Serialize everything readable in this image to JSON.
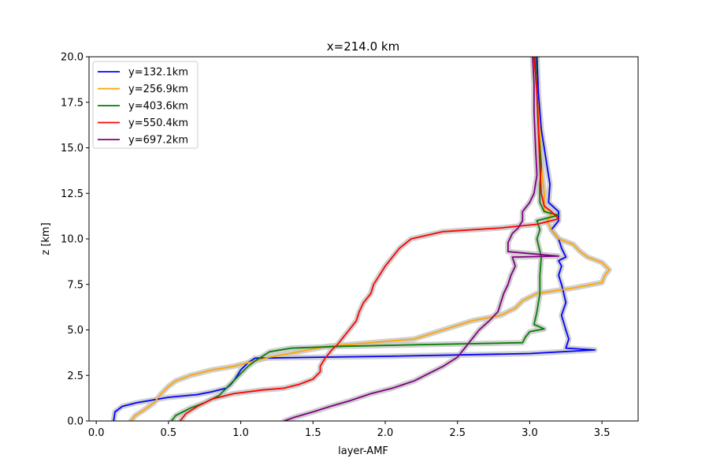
{
  "chart_data": {
    "type": "line",
    "title": "x=214.0 km",
    "xlabel": "layer-AMF",
    "ylabel": "z [km]",
    "xlim": [
      -0.05,
      3.75
    ],
    "ylim": [
      0,
      20
    ],
    "xticks": [
      0.0,
      0.5,
      1.0,
      1.5,
      2.0,
      2.5,
      3.0,
      3.5
    ],
    "xtick_labels": [
      "0.0",
      "0.5",
      "1.0",
      "1.5",
      "2.0",
      "2.5",
      "3.0",
      "3.5"
    ],
    "yticks": [
      0,
      2.5,
      5,
      7.5,
      10,
      12.5,
      15,
      17.5,
      20
    ],
    "ytick_labels": [
      "0.0",
      "2.5",
      "5.0",
      "7.5",
      "10.0",
      "12.5",
      "15.0",
      "17.5",
      "20.0"
    ],
    "grid": false,
    "legend_position": "upper-left",
    "uncertainty_band_color": "#c8c8c8",
    "series": [
      {
        "name": "y=132.1km",
        "color": "#0000ff",
        "points": [
          [
            0.12,
            0
          ],
          [
            0.13,
            0.5
          ],
          [
            0.18,
            0.8
          ],
          [
            0.28,
            1.0
          ],
          [
            0.5,
            1.3
          ],
          [
            0.7,
            1.45
          ],
          [
            0.8,
            1.6
          ],
          [
            0.9,
            1.8
          ],
          [
            0.93,
            2.0
          ],
          [
            0.96,
            2.3
          ],
          [
            1.0,
            2.8
          ],
          [
            1.05,
            3.2
          ],
          [
            1.1,
            3.45
          ],
          [
            2.0,
            3.55
          ],
          [
            3.0,
            3.7
          ],
          [
            3.45,
            3.9
          ],
          [
            3.25,
            4.0
          ],
          [
            3.27,
            4.5
          ],
          [
            3.25,
            5.0
          ],
          [
            3.22,
            5.8
          ],
          [
            3.25,
            6.5
          ],
          [
            3.23,
            7.2
          ],
          [
            3.22,
            7.5
          ],
          [
            3.2,
            8.0
          ],
          [
            3.22,
            8.5
          ],
          [
            3.2,
            8.8
          ],
          [
            3.25,
            9.0
          ],
          [
            3.22,
            9.5
          ],
          [
            3.2,
            10.0
          ],
          [
            3.15,
            10.5
          ],
          [
            3.2,
            11.0
          ],
          [
            3.2,
            11.5
          ],
          [
            3.13,
            12.0
          ],
          [
            3.14,
            13.0
          ],
          [
            3.12,
            14.0
          ],
          [
            3.1,
            15.0
          ],
          [
            3.08,
            16.0
          ],
          [
            3.06,
            18.0
          ],
          [
            3.05,
            20.0
          ]
        ]
      },
      {
        "name": "y=256.9km",
        "color": "#ffa500",
        "points": [
          [
            0.24,
            0
          ],
          [
            0.27,
            0.3
          ],
          [
            0.33,
            0.6
          ],
          [
            0.4,
            1.0
          ],
          [
            0.45,
            1.5
          ],
          [
            0.5,
            1.9
          ],
          [
            0.55,
            2.2
          ],
          [
            0.65,
            2.5
          ],
          [
            0.8,
            2.8
          ],
          [
            0.95,
            3.0
          ],
          [
            1.05,
            3.2
          ],
          [
            1.2,
            3.5
          ],
          [
            1.4,
            3.8
          ],
          [
            1.6,
            4.1
          ],
          [
            1.9,
            4.3
          ],
          [
            2.2,
            4.5
          ],
          [
            2.4,
            5.0
          ],
          [
            2.6,
            5.5
          ],
          [
            2.8,
            5.8
          ],
          [
            2.9,
            6.2
          ],
          [
            2.95,
            6.6
          ],
          [
            3.05,
            7.0
          ],
          [
            3.3,
            7.3
          ],
          [
            3.5,
            7.6
          ],
          [
            3.52,
            8.0
          ],
          [
            3.55,
            8.3
          ],
          [
            3.5,
            8.7
          ],
          [
            3.4,
            9.0
          ],
          [
            3.35,
            9.3
          ],
          [
            3.3,
            9.7
          ],
          [
            3.2,
            10.0
          ],
          [
            3.15,
            10.5
          ],
          [
            3.12,
            11.0
          ],
          [
            3.15,
            11.3
          ],
          [
            3.1,
            11.6
          ],
          [
            3.1,
            12.5
          ],
          [
            3.08,
            14.0
          ],
          [
            3.07,
            16.0
          ],
          [
            3.05,
            18.0
          ],
          [
            3.04,
            20.0
          ]
        ]
      },
      {
        "name": "y=403.6km",
        "color": "#008000",
        "points": [
          [
            0.52,
            0
          ],
          [
            0.55,
            0.3
          ],
          [
            0.65,
            0.7
          ],
          [
            0.75,
            1.0
          ],
          [
            0.85,
            1.4
          ],
          [
            0.9,
            1.8
          ],
          [
            0.95,
            2.2
          ],
          [
            1.0,
            2.6
          ],
          [
            1.05,
            3.0
          ],
          [
            1.1,
            3.3
          ],
          [
            1.2,
            3.8
          ],
          [
            1.35,
            4.0
          ],
          [
            1.7,
            4.1
          ],
          [
            2.3,
            4.2
          ],
          [
            2.95,
            4.3
          ],
          [
            2.97,
            4.6
          ],
          [
            3.0,
            4.9
          ],
          [
            3.1,
            5.05
          ],
          [
            3.03,
            5.3
          ],
          [
            3.05,
            6.0
          ],
          [
            3.07,
            7.0
          ],
          [
            3.07,
            8.0
          ],
          [
            3.08,
            9.0
          ],
          [
            3.05,
            10.0
          ],
          [
            3.07,
            10.5
          ],
          [
            3.05,
            11.0
          ],
          [
            3.15,
            11.2
          ],
          [
            3.2,
            11.3
          ],
          [
            3.1,
            11.5
          ],
          [
            3.07,
            12.0
          ],
          [
            3.07,
            13.0
          ],
          [
            3.08,
            14.0
          ],
          [
            3.07,
            15.0
          ],
          [
            3.06,
            16.0
          ],
          [
            3.05,
            18.0
          ],
          [
            3.04,
            20.0
          ]
        ]
      },
      {
        "name": "y=550.4km",
        "color": "#ff0000",
        "points": [
          [
            0.58,
            0
          ],
          [
            0.62,
            0.4
          ],
          [
            0.7,
            0.8
          ],
          [
            0.8,
            1.2
          ],
          [
            0.95,
            1.5
          ],
          [
            1.15,
            1.7
          ],
          [
            1.3,
            1.8
          ],
          [
            1.4,
            2.0
          ],
          [
            1.5,
            2.3
          ],
          [
            1.55,
            2.7
          ],
          [
            1.55,
            3.0
          ],
          [
            1.58,
            3.4
          ],
          [
            1.63,
            3.9
          ],
          [
            1.67,
            4.2
          ],
          [
            1.7,
            4.5
          ],
          [
            1.75,
            5.0
          ],
          [
            1.8,
            5.5
          ],
          [
            1.82,
            6.0
          ],
          [
            1.85,
            6.5
          ],
          [
            1.9,
            7.0
          ],
          [
            1.92,
            7.5
          ],
          [
            1.96,
            8.0
          ],
          [
            2.0,
            8.5
          ],
          [
            2.05,
            9.0
          ],
          [
            2.1,
            9.5
          ],
          [
            2.18,
            10.0
          ],
          [
            2.4,
            10.4
          ],
          [
            2.8,
            10.6
          ],
          [
            3.05,
            10.8
          ],
          [
            3.2,
            11.1
          ],
          [
            3.15,
            11.5
          ],
          [
            3.1,
            11.8
          ],
          [
            3.08,
            12.5
          ],
          [
            3.07,
            14.0
          ],
          [
            3.06,
            16.0
          ],
          [
            3.05,
            18.0
          ],
          [
            3.03,
            20.0
          ]
        ]
      },
      {
        "name": "y=697.2km",
        "color": "#800080",
        "points": [
          [
            1.3,
            0
          ],
          [
            1.37,
            0.2
          ],
          [
            1.5,
            0.5
          ],
          [
            1.62,
            0.8
          ],
          [
            1.75,
            1.1
          ],
          [
            1.9,
            1.5
          ],
          [
            2.05,
            1.8
          ],
          [
            2.2,
            2.2
          ],
          [
            2.3,
            2.6
          ],
          [
            2.4,
            3.0
          ],
          [
            2.5,
            3.5
          ],
          [
            2.55,
            4.0
          ],
          [
            2.6,
            4.5
          ],
          [
            2.65,
            5.0
          ],
          [
            2.72,
            5.5
          ],
          [
            2.78,
            6.0
          ],
          [
            2.8,
            6.5
          ],
          [
            2.82,
            7.0
          ],
          [
            2.85,
            7.5
          ],
          [
            2.87,
            8.0
          ],
          [
            2.9,
            8.5
          ],
          [
            2.88,
            9.0
          ],
          [
            3.2,
            9.05
          ],
          [
            2.85,
            9.3
          ],
          [
            2.85,
            9.8
          ],
          [
            2.88,
            10.3
          ],
          [
            2.92,
            10.6
          ],
          [
            2.95,
            11.0
          ],
          [
            2.95,
            11.5
          ],
          [
            3.0,
            12.0
          ],
          [
            3.03,
            12.5
          ],
          [
            3.05,
            13.5
          ],
          [
            3.04,
            15.0
          ],
          [
            3.03,
            17.0
          ],
          [
            3.03,
            18.5
          ],
          [
            3.02,
            20.0
          ]
        ]
      }
    ]
  }
}
